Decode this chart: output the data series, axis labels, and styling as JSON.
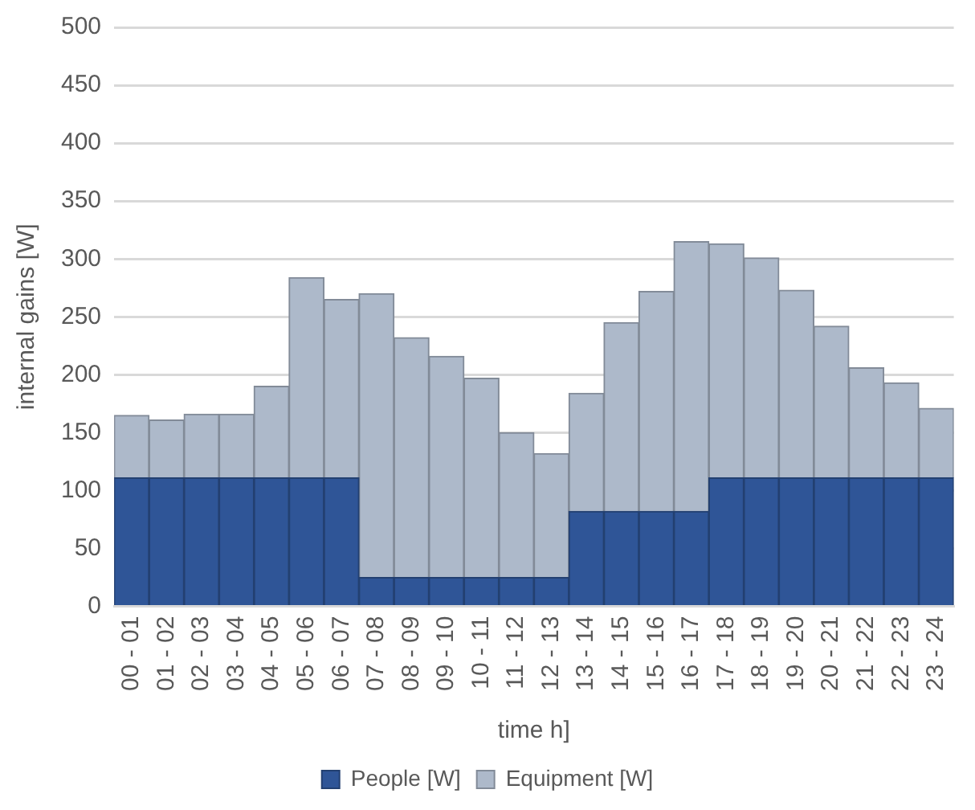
{
  "chart_data": {
    "type": "bar",
    "stacked": true,
    "xlabel": "time h]",
    "ylabel": "internal gains [W]",
    "categories": [
      "00 - 01",
      "01 - 02",
      "02 - 03",
      "03 - 04",
      "04 - 05",
      "05 - 06",
      "06 - 07",
      "07 - 08",
      "08 - 09",
      "09 - 10",
      "10 - 11",
      "11 - 12",
      "12 - 13",
      "13 - 14",
      "14 - 15",
      "15 - 16",
      "16 - 17",
      "17 - 18",
      "18 - 19",
      "19 - 20",
      "20 - 21",
      "21 - 22",
      "22 - 23",
      "23 - 24"
    ],
    "series": [
      {
        "name": "People [W]",
        "color": "#2f5597",
        "values": [
          111,
          111,
          111,
          111,
          111,
          111,
          111,
          25,
          25,
          25,
          25,
          25,
          25,
          82,
          82,
          82,
          82,
          111,
          111,
          111,
          111,
          111,
          111,
          111
        ]
      },
      {
        "name": "Equipment [W]",
        "color": "#adb9ca",
        "values": [
          54,
          50,
          55,
          55,
          79,
          173,
          154,
          245,
          207,
          191,
          172,
          125,
          107,
          102,
          163,
          190,
          233,
          202,
          190,
          162,
          131,
          95,
          82,
          60
        ]
      }
    ],
    "ylim": [
      0,
      500
    ],
    "yticks": [
      0,
      50,
      100,
      150,
      200,
      250,
      300,
      350,
      400,
      450,
      500
    ],
    "grid": "y",
    "legend": "bottom"
  }
}
